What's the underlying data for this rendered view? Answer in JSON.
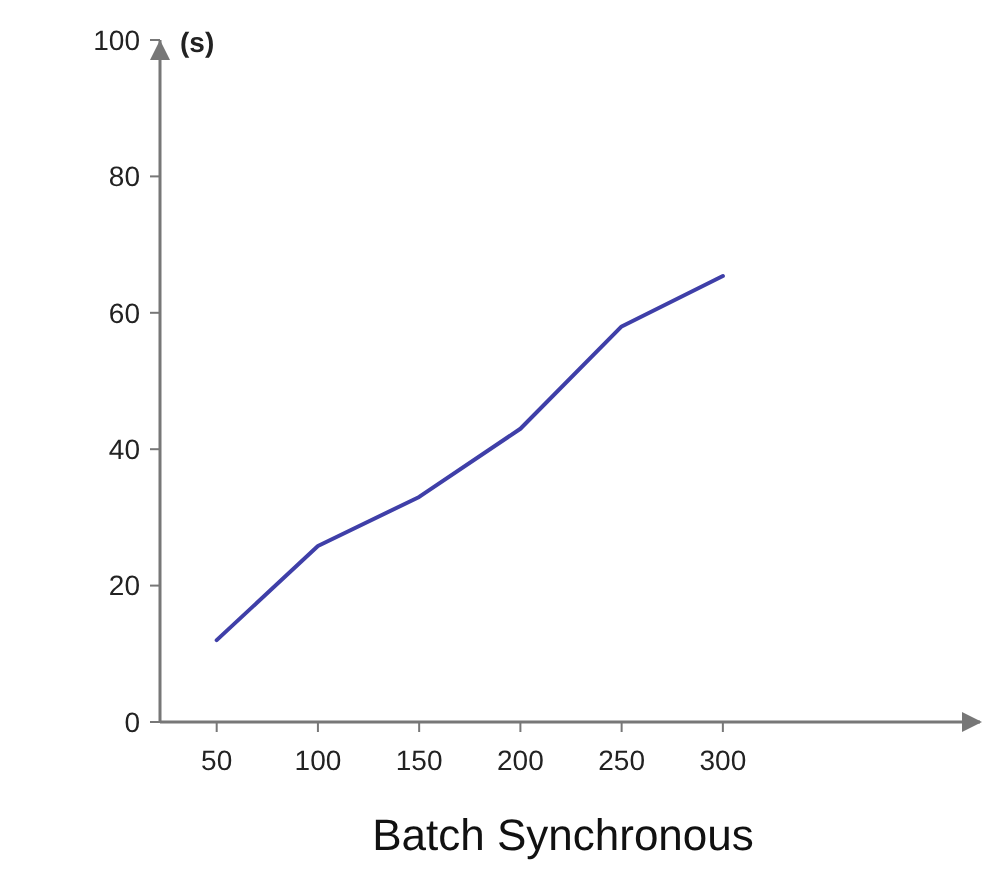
{
  "chart_data": {
    "type": "line",
    "ylabel": "(s)",
    "xlabel": "Batch Synchronous",
    "x": [
      50,
      100,
      150,
      200,
      250,
      300
    ],
    "series": [
      {
        "color": "#3f3fa8",
        "values": [
          12,
          25.8,
          33,
          43,
          58,
          65.4
        ]
      }
    ],
    "xlim": [
      22,
      427
    ],
    "ylim": [
      0,
      100
    ],
    "xticks": [
      50,
      100,
      150,
      200,
      250,
      300
    ],
    "yticks": [
      0,
      20,
      40,
      60,
      80,
      100
    ],
    "grid": false,
    "marker": "none",
    "line_style": "solid"
  }
}
